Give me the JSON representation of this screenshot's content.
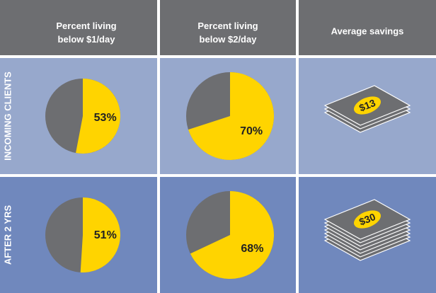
{
  "columns": [
    [
      "Percent living",
      "below $1/day"
    ],
    [
      "Percent living",
      "below $2/day"
    ],
    [
      "Average savings"
    ]
  ],
  "rows": [
    {
      "label": "INCOMING CLIENTS",
      "cells": [
        {
          "value": 53,
          "label": "53%"
        },
        {
          "value": 70,
          "label": "70%"
        },
        {
          "value": 13,
          "label": "$13"
        }
      ]
    },
    {
      "label": "AFTER 2 YRS",
      "cells": [
        {
          "value": 51,
          "label": "51%"
        },
        {
          "value": 68,
          "label": "68%"
        },
        {
          "value": 30,
          "label": "$30"
        }
      ]
    }
  ],
  "colors": {
    "header": "#6d6e71",
    "row_backgrounds": [
      "#97a8cc",
      "#7088bd"
    ],
    "pie_value": "#ffd400",
    "pie_rest": "#6d6e71"
  }
}
